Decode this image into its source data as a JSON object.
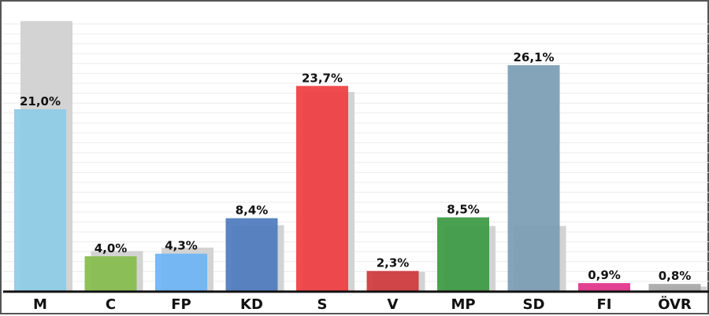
{
  "chart_data": {
    "type": "bar",
    "categories": [
      "M",
      "C",
      "FP",
      "KD",
      "S",
      "V",
      "MP",
      "SD",
      "FI",
      "ÖVR"
    ],
    "series": [
      {
        "values": [
          21.0,
          4.0,
          4.3,
          8.4,
          23.7,
          2.3,
          8.5,
          26.1,
          0.9,
          0.8
        ],
        "labels": [
          "21,0%",
          "4,0%",
          "4,3%",
          "8,4%",
          "23,7%",
          "2,3%",
          "8,5%",
          "26,1%",
          "0,9%",
          "0,8%"
        ]
      },
      {
        "values": [
          31.2,
          4.6,
          5.0,
          7.6,
          23.0,
          2.2,
          7.5,
          7.5,
          0.0,
          0.5
        ]
      }
    ],
    "ylim": [
      0,
      32
    ],
    "grid": true,
    "legend": "none",
    "xlabel": "",
    "ylabel": "",
    "colors": [
      "#8ecbe6",
      "#86bc4e",
      "#6db5f5",
      "#4f7bbd",
      "#ef3e42",
      "#cf3a3d",
      "#3c9a44",
      "#7b9db5",
      "#e0338a",
      "#a9a9a9"
    ],
    "shadow_color": "#d3d3d3"
  }
}
